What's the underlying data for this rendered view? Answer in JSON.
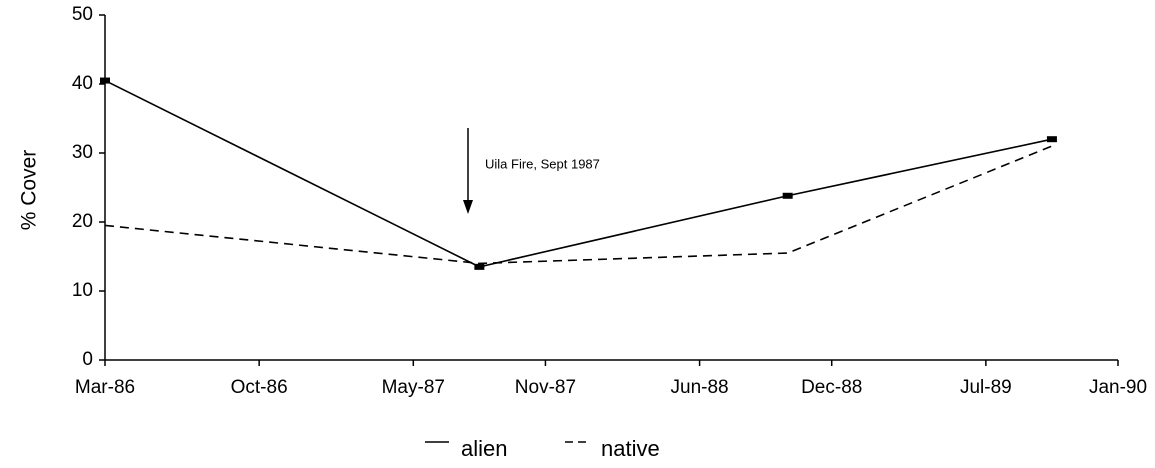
{
  "chart_data": {
    "type": "line",
    "ylabel": "% Cover",
    "annotation": "Uila Fire, Sept 1987",
    "x": [
      "1986-03",
      "1987-08",
      "1988-10",
      "1989-10"
    ],
    "series": [
      {
        "name": "alien",
        "color": "#000000",
        "dash": false,
        "values": [
          40.5,
          13.5,
          23.8,
          32
        ]
      },
      {
        "name": "native",
        "color": "#000000",
        "dash": true,
        "values": [
          19.5,
          14,
          15.5,
          31
        ]
      }
    ],
    "xlim": [
      "1986-03",
      "1990-01"
    ],
    "xticks": [
      {
        "value": "1986-03",
        "label": "Mar-86"
      },
      {
        "value": "1986-10",
        "label": "Oct-86"
      },
      {
        "value": "1987-05",
        "label": "May-87"
      },
      {
        "value": "1987-11",
        "label": "Nov-87"
      },
      {
        "value": "1988-06",
        "label": "Jun-88"
      },
      {
        "value": "1988-12",
        "label": "Dec-88"
      },
      {
        "value": "1989-07",
        "label": "Jul-89"
      },
      {
        "value": "1990-01",
        "label": "Jan-90"
      }
    ],
    "ylim": [
      0,
      50
    ],
    "yticks": [
      0,
      10,
      20,
      30,
      40,
      50
    ],
    "grid": false,
    "legend": "bottom"
  }
}
